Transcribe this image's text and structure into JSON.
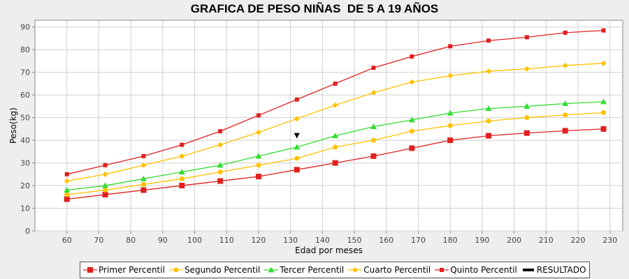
{
  "chart_data": {
    "type": "line",
    "title": "GRAFICA DE PESO NIÑAS  DE 5 A 19 AÑOS",
    "xlabel": "Edad por meses",
    "ylabel": "Peso(kg)",
    "xlim": [
      50,
      234
    ],
    "ylim": [
      0,
      93
    ],
    "xticks": [
      60,
      70,
      80,
      90,
      100,
      110,
      120,
      130,
      140,
      150,
      160,
      170,
      180,
      190,
      200,
      210,
      220,
      230
    ],
    "yticks": [
      0,
      10,
      20,
      30,
      40,
      50,
      60,
      70,
      80,
      90
    ],
    "x": [
      60,
      72,
      84,
      96,
      108,
      120,
      132,
      144,
      156,
      168,
      180,
      192,
      204,
      216,
      228
    ],
    "grid": true,
    "legend_position": "bottom",
    "series": [
      {
        "name": "Primer Percentil",
        "color": "#e02020",
        "marker": "square",
        "values": [
          14,
          16,
          18,
          20,
          22,
          24,
          27,
          30,
          33,
          36.5,
          40,
          42,
          43.2,
          44.2,
          45
        ]
      },
      {
        "name": "Segundo Percentil",
        "color": "#ffc200",
        "marker": "circle",
        "values": [
          16,
          18,
          20.5,
          23,
          26,
          29,
          32,
          37,
          40,
          44,
          46.5,
          48.5,
          50,
          51.2,
          52.2
        ]
      },
      {
        "name": "Tercer Percentil",
        "color": "#33dd33",
        "marker": "triangle",
        "values": [
          18,
          20,
          23,
          26,
          29,
          33,
          37,
          42,
          46,
          49,
          52,
          54,
          55,
          56.2,
          57
        ]
      },
      {
        "name": "Cuarto Percentil",
        "color": "#ffc200",
        "marker": "diamond",
        "values": [
          22,
          25,
          29,
          33,
          38,
          43.5,
          49.5,
          55.5,
          61,
          65.7,
          68.5,
          70.5,
          71.5,
          73,
          74
        ]
      },
      {
        "name": "Quinto Percentil",
        "color": "#e02020",
        "marker": "small-square",
        "values": [
          25,
          29,
          33,
          38,
          44,
          51,
          58,
          65,
          72,
          77,
          81.5,
          84,
          85.5,
          87.5,
          88.5
        ]
      }
    ],
    "result": {
      "name": "RESULTADO",
      "color": "#000000",
      "marker": "down-triangle",
      "x": 132,
      "y": 42
    }
  }
}
